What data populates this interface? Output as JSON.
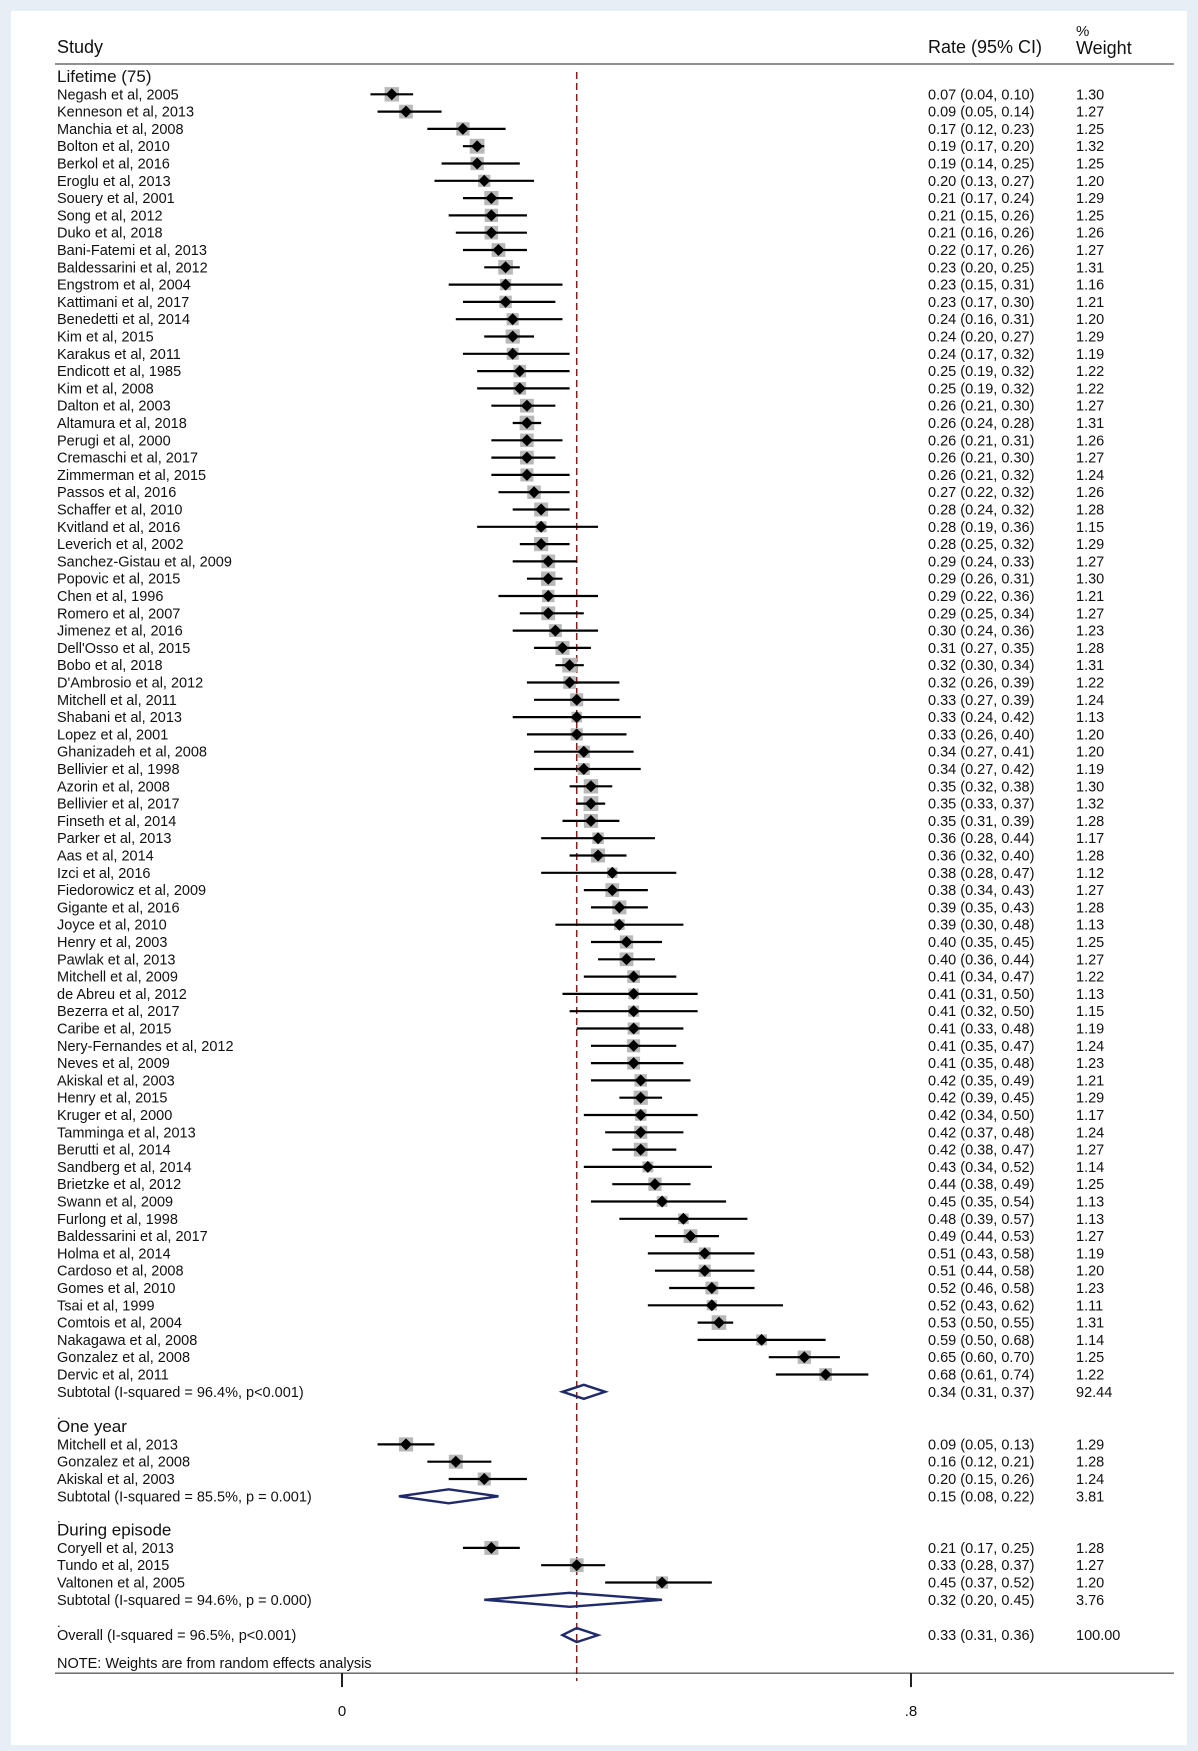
{
  "chart_data": {
    "type": "forest",
    "title": "",
    "header": {
      "study": "Study",
      "rate": "Rate (95% CI)",
      "weight_top": "%",
      "weight": "Weight"
    },
    "note": "NOTE: Weights are from random effects analysis",
    "xaxis": {
      "ticks": [
        0,
        0.8
      ],
      "tick_labels": [
        "0",
        ".8"
      ],
      "range": [
        0,
        1.2
      ]
    },
    "reference_line": 0.33,
    "groups": [
      {
        "label": "Lifetime (75)",
        "studies": [
          {
            "name": "Negash et al, 2005",
            "rate": 0.07,
            "lo": 0.04,
            "hi": 0.1,
            "ci": "0.07 (0.04, 0.10)",
            "weight": "1.30"
          },
          {
            "name": "Kenneson et al, 2013",
            "rate": 0.09,
            "lo": 0.05,
            "hi": 0.14,
            "ci": "0.09 (0.05, 0.14)",
            "weight": "1.27"
          },
          {
            "name": "Manchia et al, 2008",
            "rate": 0.17,
            "lo": 0.12,
            "hi": 0.23,
            "ci": "0.17 (0.12, 0.23)",
            "weight": "1.25"
          },
          {
            "name": "Bolton et al, 2010",
            "rate": 0.19,
            "lo": 0.17,
            "hi": 0.2,
            "ci": "0.19 (0.17, 0.20)",
            "weight": "1.32"
          },
          {
            "name": "Berkol et al, 2016",
            "rate": 0.19,
            "lo": 0.14,
            "hi": 0.25,
            "ci": "0.19 (0.14, 0.25)",
            "weight": "1.25"
          },
          {
            "name": "Eroglu et al, 2013",
            "rate": 0.2,
            "lo": 0.13,
            "hi": 0.27,
            "ci": "0.20 (0.13, 0.27)",
            "weight": "1.20"
          },
          {
            "name": "Souery et al, 2001",
            "rate": 0.21,
            "lo": 0.17,
            "hi": 0.24,
            "ci": "0.21 (0.17, 0.24)",
            "weight": "1.29"
          },
          {
            "name": "Song et al, 2012",
            "rate": 0.21,
            "lo": 0.15,
            "hi": 0.26,
            "ci": "0.21 (0.15, 0.26)",
            "weight": "1.25"
          },
          {
            "name": "Duko et al, 2018",
            "rate": 0.21,
            "lo": 0.16,
            "hi": 0.26,
            "ci": "0.21 (0.16, 0.26)",
            "weight": "1.26"
          },
          {
            "name": "Bani-Fatemi et al, 2013",
            "rate": 0.22,
            "lo": 0.17,
            "hi": 0.26,
            "ci": "0.22 (0.17, 0.26)",
            "weight": "1.27"
          },
          {
            "name": "Baldessarini et al, 2012",
            "rate": 0.23,
            "lo": 0.2,
            "hi": 0.25,
            "ci": "0.23 (0.20, 0.25)",
            "weight": "1.31"
          },
          {
            "name": "Engstrom et al, 2004",
            "rate": 0.23,
            "lo": 0.15,
            "hi": 0.31,
            "ci": "0.23 (0.15, 0.31)",
            "weight": "1.16"
          },
          {
            "name": "Kattimani et al, 2017",
            "rate": 0.23,
            "lo": 0.17,
            "hi": 0.3,
            "ci": "0.23 (0.17, 0.30)",
            "weight": "1.21"
          },
          {
            "name": "Benedetti et al, 2014",
            "rate": 0.24,
            "lo": 0.16,
            "hi": 0.31,
            "ci": "0.24 (0.16, 0.31)",
            "weight": "1.20"
          },
          {
            "name": "Kim et al, 2015",
            "rate": 0.24,
            "lo": 0.2,
            "hi": 0.27,
            "ci": "0.24 (0.20, 0.27)",
            "weight": "1.29"
          },
          {
            "name": "Karakus et al, 2011",
            "rate": 0.24,
            "lo": 0.17,
            "hi": 0.32,
            "ci": "0.24 (0.17, 0.32)",
            "weight": "1.19"
          },
          {
            "name": "Endicott et al, 1985",
            "rate": 0.25,
            "lo": 0.19,
            "hi": 0.32,
            "ci": "0.25 (0.19, 0.32)",
            "weight": "1.22"
          },
          {
            "name": "Kim et al, 2008",
            "rate": 0.25,
            "lo": 0.19,
            "hi": 0.32,
            "ci": "0.25 (0.19, 0.32)",
            "weight": "1.22"
          },
          {
            "name": "Dalton et al, 2003",
            "rate": 0.26,
            "lo": 0.21,
            "hi": 0.3,
            "ci": "0.26 (0.21, 0.30)",
            "weight": "1.27"
          },
          {
            "name": "Altamura et al, 2018",
            "rate": 0.26,
            "lo": 0.24,
            "hi": 0.28,
            "ci": "0.26 (0.24, 0.28)",
            "weight": "1.31"
          },
          {
            "name": "Perugi et al, 2000",
            "rate": 0.26,
            "lo": 0.21,
            "hi": 0.31,
            "ci": "0.26 (0.21, 0.31)",
            "weight": "1.26"
          },
          {
            "name": "Cremaschi et al, 2017",
            "rate": 0.26,
            "lo": 0.21,
            "hi": 0.3,
            "ci": "0.26 (0.21, 0.30)",
            "weight": "1.27"
          },
          {
            "name": "Zimmerman et al, 2015",
            "rate": 0.26,
            "lo": 0.21,
            "hi": 0.32,
            "ci": "0.26 (0.21, 0.32)",
            "weight": "1.24"
          },
          {
            "name": "Passos et al, 2016",
            "rate": 0.27,
            "lo": 0.22,
            "hi": 0.32,
            "ci": "0.27 (0.22, 0.32)",
            "weight": "1.26"
          },
          {
            "name": "Schaffer et al, 2010",
            "rate": 0.28,
            "lo": 0.24,
            "hi": 0.32,
            "ci": "0.28 (0.24, 0.32)",
            "weight": "1.28"
          },
          {
            "name": "Kvitland et al, 2016",
            "rate": 0.28,
            "lo": 0.19,
            "hi": 0.36,
            "ci": "0.28 (0.19, 0.36)",
            "weight": "1.15"
          },
          {
            "name": "Leverich et al, 2002",
            "rate": 0.28,
            "lo": 0.25,
            "hi": 0.32,
            "ci": "0.28 (0.25, 0.32)",
            "weight": "1.29"
          },
          {
            "name": "Sanchez-Gistau et al, 2009",
            "rate": 0.29,
            "lo": 0.24,
            "hi": 0.33,
            "ci": "0.29 (0.24, 0.33)",
            "weight": "1.27"
          },
          {
            "name": "Popovic et al, 2015",
            "rate": 0.29,
            "lo": 0.26,
            "hi": 0.31,
            "ci": "0.29 (0.26, 0.31)",
            "weight": "1.30"
          },
          {
            "name": "Chen et al, 1996",
            "rate": 0.29,
            "lo": 0.22,
            "hi": 0.36,
            "ci": "0.29 (0.22, 0.36)",
            "weight": "1.21"
          },
          {
            "name": "Romero et al, 2007",
            "rate": 0.29,
            "lo": 0.25,
            "hi": 0.34,
            "ci": "0.29 (0.25, 0.34)",
            "weight": "1.27"
          },
          {
            "name": "Jimenez et al, 2016",
            "rate": 0.3,
            "lo": 0.24,
            "hi": 0.36,
            "ci": "0.30 (0.24, 0.36)",
            "weight": "1.23"
          },
          {
            "name": "Dell'Osso et al, 2015",
            "rate": 0.31,
            "lo": 0.27,
            "hi": 0.35,
            "ci": "0.31 (0.27, 0.35)",
            "weight": "1.28"
          },
          {
            "name": "Bobo et al, 2018",
            "rate": 0.32,
            "lo": 0.3,
            "hi": 0.34,
            "ci": "0.32 (0.30, 0.34)",
            "weight": "1.31"
          },
          {
            "name": "D'Ambrosio et al, 2012",
            "rate": 0.32,
            "lo": 0.26,
            "hi": 0.39,
            "ci": "0.32 (0.26, 0.39)",
            "weight": "1.22"
          },
          {
            "name": "Mitchell et al, 2011",
            "rate": 0.33,
            "lo": 0.27,
            "hi": 0.39,
            "ci": "0.33 (0.27, 0.39)",
            "weight": "1.24"
          },
          {
            "name": "Shabani et al, 2013",
            "rate": 0.33,
            "lo": 0.24,
            "hi": 0.42,
            "ci": "0.33 (0.24, 0.42)",
            "weight": "1.13"
          },
          {
            "name": "Lopez et al, 2001",
            "rate": 0.33,
            "lo": 0.26,
            "hi": 0.4,
            "ci": "0.33 (0.26, 0.40)",
            "weight": "1.20"
          },
          {
            "name": "Ghanizadeh et al, 2008",
            "rate": 0.34,
            "lo": 0.27,
            "hi": 0.41,
            "ci": "0.34 (0.27, 0.41)",
            "weight": "1.20"
          },
          {
            "name": "Bellivier et al, 1998",
            "rate": 0.34,
            "lo": 0.27,
            "hi": 0.42,
            "ci": "0.34 (0.27, 0.42)",
            "weight": "1.19"
          },
          {
            "name": "Azorin et al, 2008",
            "rate": 0.35,
            "lo": 0.32,
            "hi": 0.38,
            "ci": "0.35 (0.32, 0.38)",
            "weight": "1.30"
          },
          {
            "name": "Bellivier et al, 2017",
            "rate": 0.35,
            "lo": 0.33,
            "hi": 0.37,
            "ci": "0.35 (0.33, 0.37)",
            "weight": "1.32"
          },
          {
            "name": "Finseth et al, 2014",
            "rate": 0.35,
            "lo": 0.31,
            "hi": 0.39,
            "ci": "0.35 (0.31, 0.39)",
            "weight": "1.28"
          },
          {
            "name": "Parker et al, 2013",
            "rate": 0.36,
            "lo": 0.28,
            "hi": 0.44,
            "ci": "0.36 (0.28, 0.44)",
            "weight": "1.17"
          },
          {
            "name": "Aas et al, 2014",
            "rate": 0.36,
            "lo": 0.32,
            "hi": 0.4,
            "ci": "0.36 (0.32, 0.40)",
            "weight": "1.28"
          },
          {
            "name": "Izci et al, 2016",
            "rate": 0.38,
            "lo": 0.28,
            "hi": 0.47,
            "ci": "0.38 (0.28, 0.47)",
            "weight": "1.12"
          },
          {
            "name": "Fiedorowicz et al, 2009",
            "rate": 0.38,
            "lo": 0.34,
            "hi": 0.43,
            "ci": "0.38 (0.34, 0.43)",
            "weight": "1.27"
          },
          {
            "name": "Gigante et al, 2016",
            "rate": 0.39,
            "lo": 0.35,
            "hi": 0.43,
            "ci": "0.39 (0.35, 0.43)",
            "weight": "1.28"
          },
          {
            "name": "Joyce et al, 2010",
            "rate": 0.39,
            "lo": 0.3,
            "hi": 0.48,
            "ci": "0.39 (0.30, 0.48)",
            "weight": "1.13"
          },
          {
            "name": "Henry et al, 2003",
            "rate": 0.4,
            "lo": 0.35,
            "hi": 0.45,
            "ci": "0.40 (0.35, 0.45)",
            "weight": "1.25"
          },
          {
            "name": "Pawlak et al, 2013",
            "rate": 0.4,
            "lo": 0.36,
            "hi": 0.44,
            "ci": "0.40 (0.36, 0.44)",
            "weight": "1.27"
          },
          {
            "name": "Mitchell et al, 2009",
            "rate": 0.41,
            "lo": 0.34,
            "hi": 0.47,
            "ci": "0.41 (0.34, 0.47)",
            "weight": "1.22"
          },
          {
            "name": "de Abreu et al, 2012",
            "rate": 0.41,
            "lo": 0.31,
            "hi": 0.5,
            "ci": "0.41 (0.31, 0.50)",
            "weight": "1.13"
          },
          {
            "name": "Bezerra et al, 2017",
            "rate": 0.41,
            "lo": 0.32,
            "hi": 0.5,
            "ci": "0.41 (0.32, 0.50)",
            "weight": "1.15"
          },
          {
            "name": "Caribe et al, 2015",
            "rate": 0.41,
            "lo": 0.33,
            "hi": 0.48,
            "ci": "0.41 (0.33, 0.48)",
            "weight": "1.19"
          },
          {
            "name": "Nery-Fernandes et al, 2012",
            "rate": 0.41,
            "lo": 0.35,
            "hi": 0.47,
            "ci": "0.41 (0.35, 0.47)",
            "weight": "1.24"
          },
          {
            "name": "Neves et al, 2009",
            "rate": 0.41,
            "lo": 0.35,
            "hi": 0.48,
            "ci": "0.41 (0.35, 0.48)",
            "weight": "1.23"
          },
          {
            "name": "Akiskal et al, 2003",
            "rate": 0.42,
            "lo": 0.35,
            "hi": 0.49,
            "ci": "0.42 (0.35, 0.49)",
            "weight": "1.21"
          },
          {
            "name": "Henry et al, 2015",
            "rate": 0.42,
            "lo": 0.39,
            "hi": 0.45,
            "ci": "0.42 (0.39, 0.45)",
            "weight": "1.29"
          },
          {
            "name": "Kruger et al, 2000",
            "rate": 0.42,
            "lo": 0.34,
            "hi": 0.5,
            "ci": "0.42 (0.34, 0.50)",
            "weight": "1.17"
          },
          {
            "name": "Tamminga et al, 2013",
            "rate": 0.42,
            "lo": 0.37,
            "hi": 0.48,
            "ci": "0.42 (0.37, 0.48)",
            "weight": "1.24"
          },
          {
            "name": "Berutti et al, 2014",
            "rate": 0.42,
            "lo": 0.38,
            "hi": 0.47,
            "ci": "0.42 (0.38, 0.47)",
            "weight": "1.27"
          },
          {
            "name": "Sandberg et al, 2014",
            "rate": 0.43,
            "lo": 0.34,
            "hi": 0.52,
            "ci": "0.43 (0.34, 0.52)",
            "weight": "1.14"
          },
          {
            "name": "Brietzke et al, 2012",
            "rate": 0.44,
            "lo": 0.38,
            "hi": 0.49,
            "ci": "0.44 (0.38, 0.49)",
            "weight": "1.25"
          },
          {
            "name": "Swann et al, 2009",
            "rate": 0.45,
            "lo": 0.35,
            "hi": 0.54,
            "ci": "0.45 (0.35, 0.54)",
            "weight": "1.13"
          },
          {
            "name": "Furlong et al, 1998",
            "rate": 0.48,
            "lo": 0.39,
            "hi": 0.57,
            "ci": "0.48 (0.39, 0.57)",
            "weight": "1.13"
          },
          {
            "name": "Baldessarini et al, 2017",
            "rate": 0.49,
            "lo": 0.44,
            "hi": 0.53,
            "ci": "0.49 (0.44, 0.53)",
            "weight": "1.27"
          },
          {
            "name": "Holma et al, 2014",
            "rate": 0.51,
            "lo": 0.43,
            "hi": 0.58,
            "ci": "0.51 (0.43, 0.58)",
            "weight": "1.19"
          },
          {
            "name": "Cardoso et al, 2008",
            "rate": 0.51,
            "lo": 0.44,
            "hi": 0.58,
            "ci": "0.51 (0.44, 0.58)",
            "weight": "1.20"
          },
          {
            "name": "Gomes et al, 2010",
            "rate": 0.52,
            "lo": 0.46,
            "hi": 0.58,
            "ci": "0.52 (0.46, 0.58)",
            "weight": "1.23"
          },
          {
            "name": "Tsai et al, 1999",
            "rate": 0.52,
            "lo": 0.43,
            "hi": 0.62,
            "ci": "0.52 (0.43, 0.62)",
            "weight": "1.11"
          },
          {
            "name": "Comtois et al, 2004",
            "rate": 0.53,
            "lo": 0.5,
            "hi": 0.55,
            "ci": "0.53 (0.50, 0.55)",
            "weight": "1.31"
          },
          {
            "name": "Nakagawa et al, 2008",
            "rate": 0.59,
            "lo": 0.5,
            "hi": 0.68,
            "ci": "0.59 (0.50, 0.68)",
            "weight": "1.14"
          },
          {
            "name": "Gonzalez et al, 2008",
            "rate": 0.65,
            "lo": 0.6,
            "hi": 0.7,
            "ci": "0.65 (0.60, 0.70)",
            "weight": "1.25"
          },
          {
            "name": "Dervic et al, 2011",
            "rate": 0.68,
            "lo": 0.61,
            "hi": 0.74,
            "ci": "0.68 (0.61, 0.74)",
            "weight": "1.22"
          }
        ],
        "subtotal": {
          "label": "Subtotal  (I-squared = 96.4%, p<0.001)",
          "rate": 0.34,
          "lo": 0.31,
          "hi": 0.37,
          "ci": "0.34 (0.31, 0.37)",
          "weight": "92.44"
        }
      },
      {
        "label": "One year",
        "studies": [
          {
            "name": "Mitchell et al, 2013",
            "rate": 0.09,
            "lo": 0.05,
            "hi": 0.13,
            "ci": "0.09 (0.05, 0.13)",
            "weight": "1.29"
          },
          {
            "name": "Gonzalez et al, 2008",
            "rate": 0.16,
            "lo": 0.12,
            "hi": 0.21,
            "ci": "0.16 (0.12, 0.21)",
            "weight": "1.28"
          },
          {
            "name": "Akiskal et al, 2003",
            "rate": 0.2,
            "lo": 0.15,
            "hi": 0.26,
            "ci": "0.20 (0.15, 0.26)",
            "weight": "1.24"
          }
        ],
        "subtotal": {
          "label": "Subtotal  (I-squared = 85.5%, p = 0.001)",
          "rate": 0.15,
          "lo": 0.08,
          "hi": 0.22,
          "ci": "0.15 (0.08, 0.22)",
          "weight": "3.81"
        }
      },
      {
        "label": "During episode",
        "studies": [
          {
            "name": "Coryell et al, 2013",
            "rate": 0.21,
            "lo": 0.17,
            "hi": 0.25,
            "ci": "0.21 (0.17, 0.25)",
            "weight": "1.28"
          },
          {
            "name": "Tundo et al, 2015",
            "rate": 0.33,
            "lo": 0.28,
            "hi": 0.37,
            "ci": "0.33 (0.28, 0.37)",
            "weight": "1.27"
          },
          {
            "name": "Valtonen et al, 2005",
            "rate": 0.45,
            "lo": 0.37,
            "hi": 0.52,
            "ci": "0.45 (0.37, 0.52)",
            "weight": "1.20"
          }
        ],
        "subtotal": {
          "label": "Subtotal  (I-squared = 94.6%, p = 0.000)",
          "rate": 0.32,
          "lo": 0.2,
          "hi": 0.45,
          "ci": "0.32 (0.20, 0.45)",
          "weight": "3.76"
        }
      }
    ],
    "overall": {
      "label": "Overall  (I-squared = 96.5%, p<0.001)",
      "rate": 0.33,
      "lo": 0.31,
      "hi": 0.36,
      "ci": "0.33 (0.31, 0.36)",
      "weight": "100.00"
    },
    "group_separator": ".",
    "colors": {
      "diamond": "#1f2a6b",
      "ref_line": "#8b1a1a",
      "point": "#000000",
      "weight_box": "#b8b8b8"
    }
  }
}
